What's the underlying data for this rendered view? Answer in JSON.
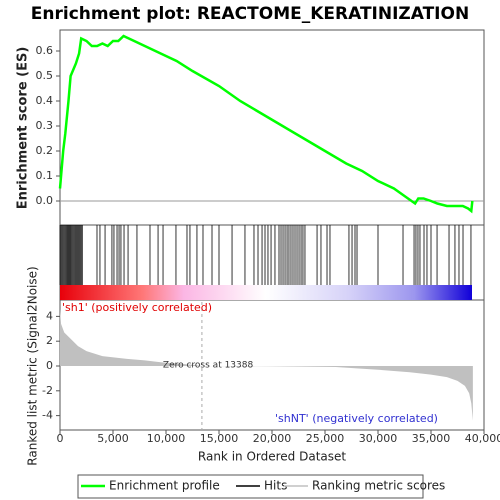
{
  "chart_data": [
    {
      "type": "line",
      "title": "Enrichment plot: REACTOME_KERATINIZATION",
      "ylabel": "Enrichment score (ES)",
      "xlim": [
        0,
        40000
      ],
      "ylim": [
        -0.096,
        0.684
      ],
      "yticks": [
        {
          "value": 0,
          "label": "0.0"
        },
        0.1,
        0.2,
        0.3,
        0.4,
        0.5,
        0.6
      ],
      "series": [
        {
          "name": "Enrichment profile",
          "color": "#00ff00",
          "x": [
            0,
            300,
            500,
            800,
            1000,
            1300,
            1500,
            1800,
            2000,
            2500,
            3000,
            3500,
            4000,
            4500,
            5000,
            5500,
            6000,
            7000,
            8000,
            9000,
            10000,
            11000,
            12500,
            15000,
            17000,
            19000,
            21000,
            23000,
            25000,
            27000,
            28500,
            30000,
            31500,
            32500,
            33500,
            33800,
            34300,
            35000,
            35600,
            36500,
            37300,
            38000,
            38500,
            38800,
            38900
          ],
          "values": [
            0.05,
            0.2,
            0.27,
            0.4,
            0.5,
            0.53,
            0.55,
            0.59,
            0.65,
            0.64,
            0.62,
            0.62,
            0.63,
            0.62,
            0.64,
            0.64,
            0.66,
            0.64,
            0.62,
            0.6,
            0.58,
            0.56,
            0.52,
            0.46,
            0.4,
            0.35,
            0.3,
            0.25,
            0.2,
            0.15,
            0.12,
            0.08,
            0.05,
            0.02,
            -0.01,
            0.01,
            0.01,
            0.0,
            -0.01,
            -0.02,
            -0.02,
            -0.02,
            -0.03,
            -0.04,
            0.0
          ]
        }
      ]
    },
    {
      "type": "rug",
      "xlim": [
        0,
        40000
      ],
      "series": [
        {
          "name": "Hits",
          "color": "#000000",
          "x": [
            0,
            100,
            200,
            300,
            400,
            500,
            600,
            700,
            800,
            900,
            1000,
            1100,
            1200,
            1300,
            1400,
            1500,
            1600,
            1700,
            1800,
            1900,
            2000,
            2100,
            3490,
            3770,
            4250,
            4900,
            5090,
            5380,
            5570,
            5750,
            6040,
            6420,
            7260,
            8490,
            9250,
            9720,
            10940,
            11980,
            12260,
            12920,
            13490,
            14340,
            15000,
            16230,
            17450,
            18300,
            18680,
            19060,
            19340,
            19620,
            19910,
            20280,
            20660,
            20850,
            21040,
            21230,
            21420,
            21600,
            21790,
            21980,
            22170,
            22360,
            22550,
            22740,
            22920,
            23110,
            24250,
            24620,
            25190,
            25470,
            27260,
            27550,
            27830,
            28020,
            30000,
            32360,
            33400,
            33580,
            33770,
            33960,
            34340,
            34620,
            35000,
            35570,
            36700,
            37260,
            37640,
            38020,
            38770
          ]
        }
      ]
    },
    {
      "type": "area",
      "ylabel": "Ranked list metric (Signal2Noise)",
      "xlabel": "Rank in Ordered Dataset",
      "xlim": [
        0,
        40000
      ],
      "ylim": [
        -5.16,
        5.16
      ],
      "yticks": [
        -4,
        -2,
        0,
        2,
        4
      ],
      "xticks": [
        0,
        {
          "value": 5000,
          "label": "5,000"
        },
        {
          "value": 10000,
          "label": "10,000"
        },
        {
          "value": 15000,
          "label": "15,000"
        },
        {
          "value": 20000,
          "label": "20,000"
        },
        {
          "value": 25000,
          "label": "25,000"
        },
        {
          "value": 30000,
          "label": "30,000"
        },
        {
          "value": 35000,
          "label": "35,000"
        },
        {
          "value": 40000,
          "label": "40,000"
        }
      ],
      "zero_cross": 13388,
      "annotations": [
        "'sh1' (positively correlated)",
        "Zero cross at 13388",
        "'shNT' (negatively correlated)"
      ],
      "series": [
        {
          "name": "Ranking metric scores",
          "color": "#c0c0c0",
          "x": [
            0,
            100,
            400,
            1000,
            1700,
            2500,
            4000,
            6000,
            8000,
            9500,
            12500,
            13388,
            20000,
            26000,
            30000,
            33000,
            35000,
            36500,
            37500,
            38200,
            38600,
            38800,
            38950
          ],
          "values": [
            4.6,
            3.4,
            2.7,
            2.2,
            1.6,
            1.2,
            0.8,
            0.6,
            0.45,
            0.3,
            0.1,
            0.0,
            -0.02,
            -0.08,
            -0.3,
            -0.5,
            -0.7,
            -0.9,
            -1.2,
            -1.6,
            -2.2,
            -3.0,
            -4.4
          ]
        }
      ]
    }
  ]
}
